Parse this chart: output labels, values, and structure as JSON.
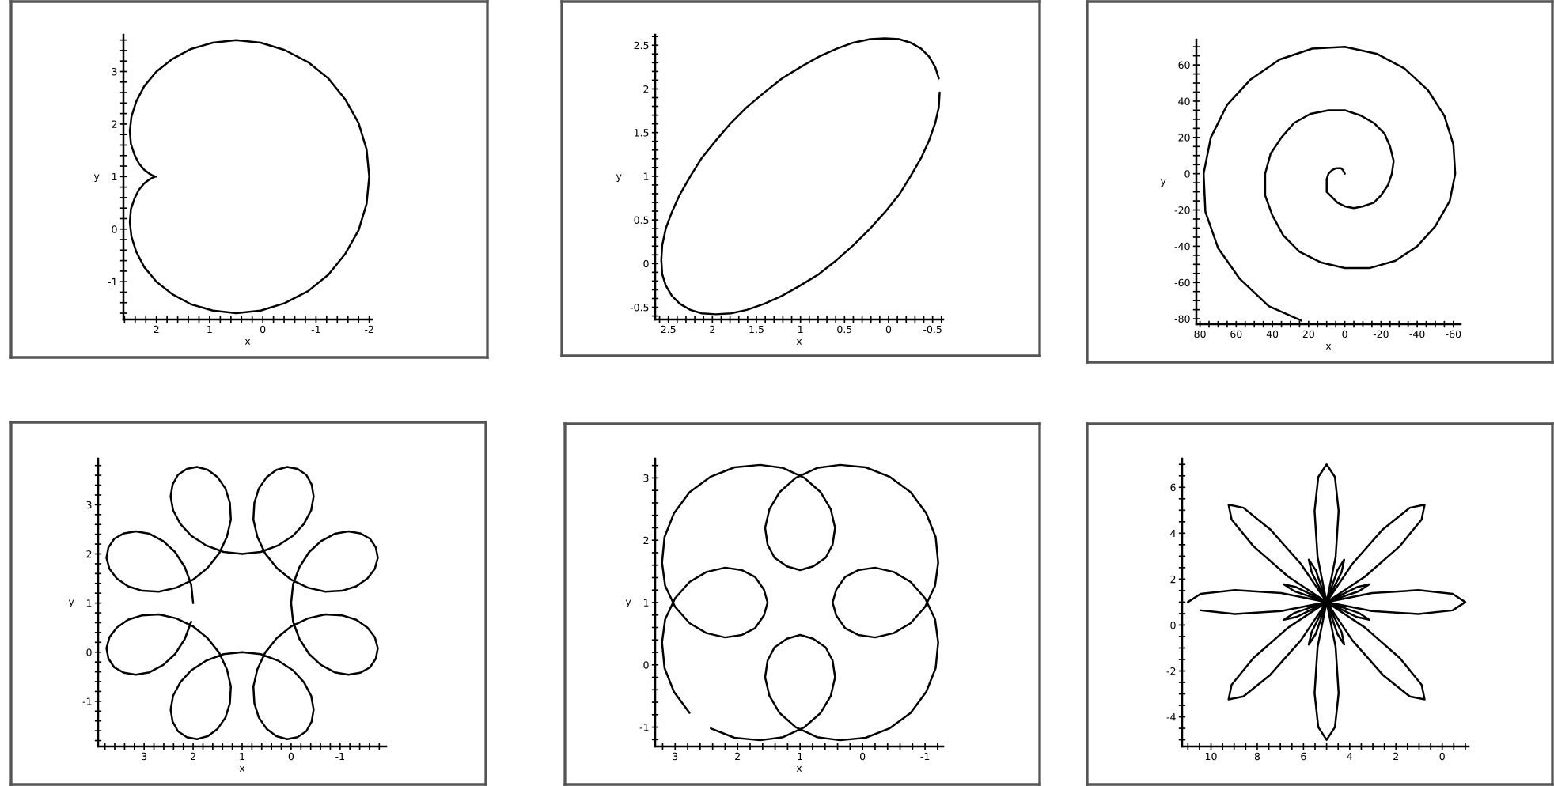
{
  "chart_data": [
    {
      "type": "line",
      "xlabel": "x",
      "ylabel": "y",
      "xlim": [
        2.62,
        -2.05
      ],
      "ylim": [
        -1.72,
        3.7
      ],
      "xticks": [
        {
          "value": 2.6,
          "label": null
        },
        {
          "value": 2.4,
          "label": null
        },
        {
          "value": 2.2,
          "label": null
        },
        2,
        {
          "value": 1.8,
          "label": null
        },
        {
          "value": 1.6,
          "label": null
        },
        {
          "value": 1.4,
          "label": null
        },
        {
          "value": 1.2,
          "label": null
        },
        1,
        {
          "value": 0.8,
          "label": null
        },
        {
          "value": 0.6,
          "label": null
        },
        {
          "value": 0.4,
          "label": null
        },
        {
          "value": 0.2,
          "label": null
        },
        0,
        {
          "value": -0.2,
          "label": null
        },
        {
          "value": -0.4,
          "label": null
        },
        {
          "value": -0.6,
          "label": null
        },
        {
          "value": -0.8,
          "label": null
        },
        -1,
        {
          "value": -1.2,
          "label": null
        },
        {
          "value": -1.4,
          "label": null
        },
        {
          "value": -1.6,
          "label": null
        },
        {
          "value": -1.8,
          "label": null
        },
        -2
      ],
      "yticks": [
        {
          "value": -1.6,
          "label": null
        },
        {
          "value": -1.4,
          "label": null
        },
        {
          "value": -1.2,
          "label": null
        },
        -1,
        {
          "value": -0.8,
          "label": null
        },
        {
          "value": -0.6,
          "label": null
        },
        {
          "value": -0.4,
          "label": null
        },
        {
          "value": -0.2,
          "label": null
        },
        0,
        {
          "value": 0.2,
          "label": null
        },
        {
          "value": 0.4,
          "label": null
        },
        {
          "value": 0.6,
          "label": null
        },
        {
          "value": 0.8,
          "label": null
        },
        1,
        {
          "value": 1.2,
          "label": null
        },
        {
          "value": 1.4,
          "label": null
        },
        {
          "value": 1.6,
          "label": null
        },
        {
          "value": 1.8,
          "label": null
        },
        2,
        {
          "value": 2.2,
          "label": null
        },
        {
          "value": 2.4,
          "label": null
        },
        {
          "value": 2.6,
          "label": null
        },
        {
          "value": 2.8,
          "label": null
        },
        3,
        {
          "value": 3.2,
          "label": null
        },
        {
          "value": 3.4,
          "label": null
        },
        {
          "value": 3.6,
          "label": null
        }
      ],
      "series": [
        {
          "color": "#000000",
          "x": [
            2,
            2.02,
            2.07,
            2.14,
            2.23,
            2.33,
            2.41,
            2.48,
            2.5,
            2.47,
            2.38,
            2.23,
            2,
            1.7,
            1.35,
            0.94,
            0.5,
            0.04,
            -0.41,
            -0.85,
            -1.23,
            -1.55,
            -1.8,
            -1.95,
            -2,
            -1.95,
            -1.8,
            -1.55,
            -1.23,
            -0.85,
            -0.41,
            0.04,
            0.5,
            0.94,
            1.35,
            1.7,
            2,
            2.23,
            2.38,
            2.47,
            2.5,
            2.48,
            2.41,
            2.33,
            2.23,
            2.14,
            2.07,
            2.02
          ],
          "values": [
            1,
            1,
            1.02,
            1.06,
            1.13,
            1.25,
            1.41,
            1.62,
            1.87,
            2.14,
            2.43,
            2.72,
            3,
            3.24,
            3.43,
            3.55,
            3.6,
            3.55,
            3.41,
            3.18,
            2.87,
            2.47,
            2.02,
            1.52,
            1,
            0.48,
            -0.02,
            -0.47,
            -0.87,
            -1.18,
            -1.41,
            -1.55,
            -1.6,
            -1.55,
            -1.43,
            -1.24,
            -1,
            -0.72,
            -0.43,
            -0.14,
            0.13,
            0.38,
            0.59,
            0.75,
            0.87,
            0.94,
            0.98,
            1
          ]
        }
      ]
    },
    {
      "type": "line",
      "xlabel": "x",
      "ylabel": "y",
      "xlim": [
        2.65,
        -0.62
      ],
      "ylim": [
        -0.64,
        2.62
      ],
      "xticks": [
        {
          "value": 2.6,
          "label": null
        },
        2.5,
        {
          "value": 2.4,
          "label": null
        },
        {
          "value": 2.3,
          "label": null
        },
        {
          "value": 2.2,
          "label": null
        },
        {
          "value": 2.1,
          "label": null
        },
        2,
        {
          "value": 1.9,
          "label": null
        },
        {
          "value": 1.8,
          "label": null
        },
        {
          "value": 1.7,
          "label": null
        },
        {
          "value": 1.6,
          "label": null
        },
        1.5,
        {
          "value": 1.4,
          "label": null
        },
        {
          "value": 1.3,
          "label": null
        },
        {
          "value": 1.2,
          "label": null
        },
        {
          "value": 1.1,
          "label": null
        },
        1,
        {
          "value": 0.9,
          "label": null
        },
        {
          "value": 0.8,
          "label": null
        },
        {
          "value": 0.7,
          "label": null
        },
        {
          "value": 0.6,
          "label": null
        },
        0.5,
        {
          "value": 0.4,
          "label": null
        },
        {
          "value": 0.3,
          "label": null
        },
        {
          "value": 0.2,
          "label": null
        },
        {
          "value": 0.1,
          "label": null
        },
        0,
        {
          "value": -0.1,
          "label": null
        },
        {
          "value": -0.2,
          "label": null
        },
        {
          "value": -0.3,
          "label": null
        },
        {
          "value": -0.4,
          "label": null
        },
        -0.5,
        {
          "value": -0.6,
          "label": null
        }
      ],
      "yticks": [
        {
          "value": -0.6,
          "label": null
        },
        -0.5,
        {
          "value": -0.4,
          "label": null
        },
        {
          "value": -0.3,
          "label": null
        },
        {
          "value": -0.2,
          "label": null
        },
        {
          "value": -0.1,
          "label": null
        },
        0,
        {
          "value": 0.1,
          "label": null
        },
        {
          "value": 0.2,
          "label": null
        },
        {
          "value": 0.3,
          "label": null
        },
        {
          "value": 0.4,
          "label": null
        },
        0.5,
        {
          "value": 0.6,
          "label": null
        },
        {
          "value": 0.7,
          "label": null
        },
        {
          "value": 0.8,
          "label": null
        },
        {
          "value": 0.9,
          "label": null
        },
        1,
        {
          "value": 1.1,
          "label": null
        },
        {
          "value": 1.2,
          "label": null
        },
        {
          "value": 1.3,
          "label": null
        },
        {
          "value": 1.4,
          "label": null
        },
        1.5,
        {
          "value": 1.6,
          "label": null
        },
        {
          "value": 1.7,
          "label": null
        },
        {
          "value": 1.8,
          "label": null
        },
        {
          "value": 1.9,
          "label": null
        },
        2,
        {
          "value": 2.1,
          "label": null
        },
        {
          "value": 2.2,
          "label": null
        },
        {
          "value": 2.3,
          "label": null
        },
        {
          "value": 2.4,
          "label": null
        },
        2.5,
        {
          "value": 2.6,
          "label": null
        }
      ],
      "series": [
        {
          "color": "#000000",
          "x": [
            -0.58,
            -0.57,
            -0.53,
            -0.46,
            -0.37,
            -0.25,
            -0.12,
            0.04,
            0.21,
            0.4,
            0.59,
            0.79,
            1,
            1.21,
            1.41,
            1.61,
            1.79,
            1.96,
            2.12,
            2.25,
            2.37,
            2.46,
            2.53,
            2.57,
            2.58,
            2.57,
            2.53,
            2.46,
            2.37,
            2.25,
            2.12,
            1.96,
            1.79,
            1.61,
            1.41,
            1.21,
            1,
            0.79,
            0.59,
            0.4,
            0.21,
            0.04,
            -0.12,
            -0.25,
            -0.37,
            -0.46,
            -0.53,
            -0.57
          ],
          "values": [
            1.96,
            1.79,
            1.61,
            1.41,
            1.21,
            1,
            0.79,
            0.59,
            0.4,
            0.21,
            0.04,
            -0.12,
            -0.25,
            -0.37,
            -0.46,
            -0.53,
            -0.57,
            -0.58,
            -0.57,
            -0.53,
            -0.46,
            -0.37,
            -0.25,
            -0.12,
            0.04,
            0.21,
            0.4,
            0.59,
            0.79,
            1,
            1.21,
            1.41,
            1.61,
            1.79,
            1.96,
            2.12,
            2.25,
            2.37,
            2.46,
            2.53,
            2.57,
            2.58,
            2.57,
            2.53,
            2.46,
            2.37,
            2.25,
            2.12
          ]
        }
      ]
    },
    {
      "type": "line",
      "xlabel": "x",
      "ylabel": "y",
      "xlim": [
        82,
        -64
      ],
      "ylim": [
        -83,
        74
      ],
      "xticks": [
        80,
        {
          "value": 75,
          "label": null
        },
        {
          "value": 70,
          "label": null
        },
        {
          "value": 65,
          "label": null
        },
        60,
        {
          "value": 55,
          "label": null
        },
        {
          "value": 50,
          "label": null
        },
        {
          "value": 45,
          "label": null
        },
        40,
        {
          "value": 35,
          "label": null
        },
        {
          "value": 30,
          "label": null
        },
        {
          "value": 25,
          "label": null
        },
        20,
        {
          "value": 15,
          "label": null
        },
        {
          "value": 10,
          "label": null
        },
        {
          "value": 5,
          "label": null
        },
        0,
        {
          "value": -5,
          "label": null
        },
        {
          "value": -10,
          "label": null
        },
        {
          "value": -15,
          "label": null
        },
        -20,
        {
          "value": -25,
          "label": null
        },
        {
          "value": -30,
          "label": null
        },
        {
          "value": -35,
          "label": null
        },
        -40,
        {
          "value": -45,
          "label": null
        },
        {
          "value": -50,
          "label": null
        },
        {
          "value": -55,
          "label": null
        },
        -60
      ],
      "yticks": [
        -80,
        {
          "value": -75,
          "label": null
        },
        {
          "value": -70,
          "label": null
        },
        {
          "value": -65,
          "label": null
        },
        -60,
        {
          "value": -55,
          "label": null
        },
        {
          "value": -50,
          "label": null
        },
        {
          "value": -45,
          "label": null
        },
        -40,
        {
          "value": -35,
          "label": null
        },
        {
          "value": -30,
          "label": null
        },
        {
          "value": -25,
          "label": null
        },
        -20,
        {
          "value": -15,
          "label": null
        },
        {
          "value": -10,
          "label": null
        },
        {
          "value": -5,
          "label": null
        },
        0,
        {
          "value": 5,
          "label": null
        },
        {
          "value": 10,
          "label": null
        },
        {
          "value": 15,
          "label": null
        },
        20,
        {
          "value": 25,
          "label": null
        },
        {
          "value": 30,
          "label": null
        },
        {
          "value": 35,
          "label": null
        },
        40,
        {
          "value": 45,
          "label": null
        },
        {
          "value": 50,
          "label": null
        },
        {
          "value": 55,
          "label": null
        },
        60,
        {
          "value": 65,
          "label": null
        },
        {
          "value": 70,
          "label": null
        }
      ],
      "series": [
        {
          "color": "#000000",
          "x": [
            0,
            1,
            2,
            3,
            5,
            7,
            9,
            10,
            10,
            10,
            7,
            4,
            0,
            -5,
            -10,
            -16,
            -20,
            -24,
            -26,
            -27,
            -25,
            -22,
            -16,
            -9,
            0,
            9,
            19,
            28,
            35,
            41,
            44,
            44,
            40,
            34,
            25,
            13,
            0,
            -14,
            -28,
            -40,
            -50,
            -58,
            -61,
            -60,
            -55,
            -46,
            -33,
            -18,
            0,
            18,
            36,
            52,
            65,
            74,
            78,
            77,
            70,
            58,
            42,
            24
          ],
          "values": [
            0,
            2,
            3,
            3,
            3,
            2,
            0,
            -3,
            -6,
            -10,
            -13,
            -16,
            -18,
            -19,
            -18,
            -16,
            -12,
            -6,
            0,
            7,
            15,
            22,
            28,
            32,
            35,
            35,
            33,
            28,
            20,
            11,
            0,
            -12,
            -23,
            -34,
            -43,
            -49,
            -52,
            -52,
            -48,
            -40,
            -29,
            -15,
            0,
            16,
            32,
            46,
            58,
            66,
            70,
            69,
            63,
            52,
            38,
            20,
            0,
            -21,
            -41,
            -58,
            -73,
            -81
          ]
        }
      ]
    },
    {
      "type": "line",
      "xlabel": "x",
      "ylabel": "y",
      "xlim": [
        3.94,
        -1.94
      ],
      "ylim": [
        -1.92,
        3.94
      ],
      "xticks": [
        {
          "value": 3.8,
          "label": null
        },
        {
          "value": 3.6,
          "label": null
        },
        {
          "value": 3.4,
          "label": null
        },
        {
          "value": 3.2,
          "label": null
        },
        3,
        {
          "value": 2.8,
          "label": null
        },
        {
          "value": 2.6,
          "label": null
        },
        {
          "value": 2.4,
          "label": null
        },
        {
          "value": 2.2,
          "label": null
        },
        2,
        {
          "value": 1.8,
          "label": null
        },
        {
          "value": 1.6,
          "label": null
        },
        {
          "value": 1.4,
          "label": null
        },
        {
          "value": 1.2,
          "label": null
        },
        1,
        {
          "value": 0.8,
          "label": null
        },
        {
          "value": 0.6,
          "label": null
        },
        {
          "value": 0.4,
          "label": null
        },
        {
          "value": 0.2,
          "label": null
        },
        0,
        {
          "value": -0.2,
          "label": null
        },
        {
          "value": -0.4,
          "label": null
        },
        {
          "value": -0.6,
          "label": null
        },
        {
          "value": -0.8,
          "label": null
        },
        -1,
        {
          "value": -1.2,
          "label": null
        },
        {
          "value": -1.4,
          "label": null
        },
        {
          "value": -1.6,
          "label": null
        },
        {
          "value": -1.8,
          "label": null
        }
      ],
      "yticks": [
        {
          "value": -1.8,
          "label": null
        },
        {
          "value": -1.6,
          "label": null
        },
        {
          "value": -1.4,
          "label": null
        },
        {
          "value": -1.2,
          "label": null
        },
        -1,
        {
          "value": -0.8,
          "label": null
        },
        {
          "value": -0.6,
          "label": null
        },
        {
          "value": -0.4,
          "label": null
        },
        {
          "value": -0.2,
          "label": null
        },
        0,
        {
          "value": 0.2,
          "label": null
        },
        {
          "value": 0.4,
          "label": null
        },
        {
          "value": 0.6,
          "label": null
        },
        {
          "value": 0.8,
          "label": null
        },
        1,
        {
          "value": 1.2,
          "label": null
        },
        {
          "value": 1.4,
          "label": null
        },
        {
          "value": 1.6,
          "label": null
        },
        {
          "value": 1.8,
          "label": null
        },
        2,
        {
          "value": 2.2,
          "label": null
        },
        {
          "value": 2.4,
          "label": null
        },
        {
          "value": 2.6,
          "label": null
        },
        {
          "value": 2.8,
          "label": null
        },
        3,
        {
          "value": 3.2,
          "label": null
        },
        {
          "value": 3.4,
          "label": null
        },
        {
          "value": 3.6,
          "label": null
        },
        {
          "value": 3.8,
          "label": null
        }
      ],
      "series": [
        {
          "color": "#000000",
          "x": [
            2.0,
            2.04,
            2.17,
            2.37,
            2.61,
            2.89,
            3.17,
            3.41,
            3.61,
            3.73,
            3.77,
            3.71,
            3.56,
            3.33,
            3.04,
            2.7,
            2.35,
            2.01,
            1.71,
            1.47,
            1.31,
            1.23,
            1.25,
            1.34,
            1.5,
            1.7,
            1.92,
            2.13,
            2.31,
            2.42,
            2.46,
            2.41,
            2.26,
            2.04,
            1.73,
            1.38,
            1.0,
            0.62,
            0.27,
            -0.04,
            -0.26,
            -0.41,
            -0.46,
            -0.42,
            -0.31,
            -0.13,
            0.08,
            0.3,
            0.5,
            0.66,
            0.75,
            0.77,
            0.69,
            0.53,
            0.29,
            -0.01,
            -0.35,
            -0.7,
            -1.04,
            -1.33,
            -1.56,
            -1.71,
            -1.77,
            -1.73,
            -1.61,
            -1.41,
            -1.17,
            -0.89,
            -0.61,
            -0.37,
            -0.17,
            -0.04,
            0.0,
            -0.04,
            -0.17,
            -0.37,
            -0.61,
            -0.89,
            -1.17,
            -1.41,
            -1.61,
            -1.73,
            -1.77,
            -1.71,
            -1.56,
            -1.33,
            -1.04,
            -0.7,
            -0.35,
            -0.01,
            0.29,
            0.53,
            0.69,
            0.77,
            0.75,
            0.66,
            0.5,
            0.3,
            0.08,
            -0.13,
            -0.31,
            -0.42,
            -0.46,
            -0.41,
            -0.26,
            -0.04,
            0.27,
            0.62,
            1.0,
            1.38,
            1.73,
            2.04,
            2.26,
            2.41,
            2.46,
            2.42,
            2.31,
            2.13,
            1.92,
            1.7,
            1.5,
            1.34,
            1.25,
            1.23,
            1.31,
            1.47,
            1.71,
            2.01,
            2.35,
            2.7,
            3.04,
            3.33,
            3.56,
            3.71,
            3.77,
            3.73,
            3.61,
            3.41,
            3.17,
            2.89,
            2.61,
            2.37,
            2.17,
            2.04
          ],
          "values": [
            1.0,
            1.38,
            1.73,
            2.04,
            2.26,
            2.41,
            2.46,
            2.42,
            2.31,
            2.13,
            1.92,
            1.7,
            1.5,
            1.34,
            1.25,
            1.23,
            1.31,
            1.47,
            1.71,
            2.01,
            2.35,
            2.7,
            3.04,
            3.33,
            3.56,
            3.71,
            3.77,
            3.73,
            3.61,
            3.41,
            3.17,
            2.89,
            2.61,
            2.37,
            2.17,
            2.04,
            2.0,
            2.04,
            2.17,
            2.37,
            2.61,
            2.89,
            3.17,
            3.41,
            3.61,
            3.73,
            3.77,
            3.71,
            3.56,
            3.33,
            3.04,
            2.7,
            2.35,
            2.01,
            1.71,
            1.47,
            1.31,
            1.23,
            1.25,
            1.34,
            1.5,
            1.7,
            1.92,
            2.13,
            2.31,
            2.42,
            2.46,
            2.41,
            2.26,
            2.04,
            1.73,
            1.38,
            1.0,
            0.62,
            0.27,
            -0.04,
            -0.26,
            -0.41,
            -0.46,
            -0.42,
            -0.31,
            -0.13,
            0.08,
            0.3,
            0.5,
            0.66,
            0.75,
            0.77,
            0.69,
            0.53,
            0.29,
            -0.01,
            -0.35,
            -0.7,
            -1.04,
            -1.33,
            -1.56,
            -1.71,
            -1.77,
            -1.73,
            -1.61,
            -1.41,
            -1.17,
            -0.89,
            -0.61,
            -0.37,
            -0.17,
            -0.04,
            0.0,
            -0.04,
            -0.17,
            -0.37,
            -0.61,
            -0.89,
            -1.17,
            -1.41,
            -1.61,
            -1.73,
            -1.77,
            -1.71,
            -1.56,
            -1.33,
            -1.04,
            -0.7,
            -0.35,
            -0.01,
            0.29,
            0.53,
            0.69,
            0.77,
            0.75,
            0.66,
            0.5,
            0.3,
            0.08,
            -0.13,
            -0.31,
            -0.42,
            -0.46,
            -0.41,
            -0.26,
            -0.04,
            0.27,
            0.62
          ]
        }
      ]
    },
    {
      "type": "line",
      "xlabel": "x",
      "ylabel": "y",
      "xlim": [
        3.32,
        -1.29
      ],
      "ylim": [
        -1.31,
        3.31
      ],
      "xticks": [
        {
          "value": 3.2,
          "label": null
        },
        3,
        {
          "value": 2.8,
          "label": null
        },
        {
          "value": 2.6,
          "label": null
        },
        {
          "value": 2.4,
          "label": null
        },
        {
          "value": 2.2,
          "label": null
        },
        2,
        {
          "value": 1.8,
          "label": null
        },
        {
          "value": 1.6,
          "label": null
        },
        {
          "value": 1.4,
          "label": null
        },
        {
          "value": 1.2,
          "label": null
        },
        1,
        {
          "value": 0.8,
          "label": null
        },
        {
          "value": 0.6,
          "label": null
        },
        {
          "value": 0.4,
          "label": null
        },
        {
          "value": 0.2,
          "label": null
        },
        0,
        {
          "value": -0.2,
          "label": null
        },
        {
          "value": -0.4,
          "label": null
        },
        {
          "value": -0.6,
          "label": null
        },
        {
          "value": -0.8,
          "label": null
        },
        -1,
        {
          "value": -1.2,
          "label": null
        }
      ],
      "yticks": [
        {
          "value": -1.2,
          "label": null
        },
        -1,
        {
          "value": -0.8,
          "label": null
        },
        {
          "value": -0.6,
          "label": null
        },
        {
          "value": -0.4,
          "label": null
        },
        {
          "value": -0.2,
          "label": null
        },
        0,
        {
          "value": 0.2,
          "label": null
        },
        {
          "value": 0.4,
          "label": null
        },
        {
          "value": 0.6,
          "label": null
        },
        {
          "value": 0.8,
          "label": null
        },
        1,
        {
          "value": 1.2,
          "label": null
        },
        {
          "value": 1.4,
          "label": null
        },
        {
          "value": 1.6,
          "label": null
        },
        {
          "value": 1.8,
          "label": null
        },
        2,
        {
          "value": 2.2,
          "label": null
        },
        {
          "value": 2.4,
          "label": null
        },
        {
          "value": 2.6,
          "label": null
        },
        {
          "value": 2.8,
          "label": null
        },
        3,
        {
          "value": 3.2,
          "label": null
        }
      ],
      "series": [
        {
          "color": "#000000",
          "x": [
            2.77,
            3.02,
            3.17,
            3.21,
            3.16,
            3.0,
            2.77,
            2.5,
            2.2,
            1.93,
            1.72,
            1.58,
            1.52,
            1.58,
            1.72,
            1.93,
            2.2,
            2.5,
            2.77,
            3.0,
            3.16,
            3.21,
            3.17,
            3.02,
            2.77,
            2.43,
            2.05,
            1.64,
            1.27,
            0.93,
            0.67,
            0.51,
            0.44,
            0.48,
            0.59,
            0.79,
            1.0,
            1.21,
            1.41,
            1.52,
            1.56,
            1.49,
            1.33,
            1.07,
            0.73,
            0.36,
            -0.05,
            -0.43,
            -0.77,
            -1.02,
            -1.17,
            -1.21,
            -1.16,
            -1.0,
            -0.77,
            -0.5,
            -0.2,
            0.07,
            0.28,
            0.42,
            0.48,
            0.42,
            0.28,
            0.07,
            -0.2,
            -0.5,
            -0.77,
            -1.0,
            -1.16,
            -1.21,
            -1.17,
            -1.02,
            -0.77,
            -0.43,
            -0.05,
            0.36,
            0.73,
            1.07,
            1.33,
            1.49,
            1.56,
            1.52,
            1.41,
            1.21,
            1.0,
            0.79,
            0.59,
            0.48,
            0.44,
            0.51,
            0.67,
            0.93,
            1.27,
            1.64,
            2.05,
            2.43
          ],
          "values": [
            -0.77,
            -0.43,
            -0.05,
            0.36,
            0.73,
            1.07,
            1.33,
            1.49,
            1.56,
            1.52,
            1.41,
            1.21,
            1.0,
            0.79,
            0.59,
            0.48,
            0.44,
            0.51,
            0.67,
            0.93,
            1.27,
            1.64,
            2.05,
            2.43,
            2.77,
            3.02,
            3.17,
            3.21,
            3.16,
            3.0,
            2.77,
            2.5,
            2.2,
            1.93,
            1.72,
            1.58,
            1.52,
            1.58,
            1.72,
            1.93,
            2.2,
            2.5,
            2.77,
            3.0,
            3.16,
            3.21,
            3.17,
            3.02,
            2.77,
            2.43,
            2.05,
            1.64,
            1.27,
            0.93,
            0.67,
            0.51,
            0.44,
            0.48,
            0.59,
            0.79,
            1.0,
            1.21,
            1.41,
            1.52,
            1.56,
            1.49,
            1.33,
            1.07,
            0.73,
            0.36,
            -0.05,
            -0.43,
            -0.77,
            -1.02,
            -1.17,
            -1.21,
            -1.16,
            -1.0,
            -0.77,
            -0.5,
            -0.2,
            0.07,
            0.28,
            0.42,
            0.48,
            0.42,
            0.28,
            0.07,
            -0.2,
            -0.5,
            -0.77,
            -1.0,
            -1.16,
            -1.21,
            -1.17,
            -1.02
          ]
        }
      ]
    },
    {
      "type": "line",
      "xlim": [
        11.25,
        -1.14
      ],
      "ylim": [
        -5.29,
        7.25
      ],
      "xticks": [
        {
          "value": 11,
          "label": null
        },
        {
          "value": 10.5,
          "label": null
        },
        10,
        {
          "value": 9.5,
          "label": null
        },
        {
          "value": 9,
          "label": null
        },
        {
          "value": 8.5,
          "label": null
        },
        8,
        {
          "value": 7.5,
          "label": null
        },
        {
          "value": 7,
          "label": null
        },
        {
          "value": 6.5,
          "label": null
        },
        6,
        {
          "value": 5.5,
          "label": null
        },
        {
          "value": 5,
          "label": null
        },
        {
          "value": 4.5,
          "label": null
        },
        4,
        {
          "value": 3.5,
          "label": null
        },
        {
          "value": 3,
          "label": null
        },
        {
          "value": 2.5,
          "label": null
        },
        2,
        {
          "value": 1.5,
          "label": null
        },
        {
          "value": 1,
          "label": null
        },
        {
          "value": 0.5,
          "label": null
        },
        0,
        {
          "value": -0.5,
          "label": null
        },
        {
          "value": -1,
          "label": null
        }
      ],
      "yticks": [
        {
          "value": -5,
          "label": null
        },
        {
          "value": -4.5,
          "label": null
        },
        -4,
        {
          "value": -3.5,
          "label": null
        },
        {
          "value": -3,
          "label": null
        },
        {
          "value": -2.5,
          "label": null
        },
        -2,
        {
          "value": -1.5,
          "label": null
        },
        {
          "value": -1,
          "label": null
        },
        {
          "value": -0.5,
          "label": null
        },
        0,
        {
          "value": 0.5,
          "label": null
        },
        {
          "value": 1,
          "label": null
        },
        {
          "value": 1.5,
          "label": null
        },
        2,
        {
          "value": 2.5,
          "label": null
        },
        {
          "value": 3,
          "label": null
        },
        {
          "value": 3.5,
          "label": null
        },
        4,
        {
          "value": 4.5,
          "label": null
        },
        {
          "value": 5,
          "label": null
        },
        {
          "value": 5.5,
          "label": null
        },
        6,
        {
          "value": 6.5,
          "label": null
        },
        {
          "value": 7,
          "label": null
        }
      ],
      "series": [
        {
          "color": "#000000",
          "x": [
            11.0,
            10.45,
            8.97,
            6.96,
            5.0,
            3.61,
            3.15,
            3.69,
            5.0,
            6.66,
            8.17,
            9.11,
            9.24,
            8.6,
            7.44,
            6.11,
            5.0,
            4.35,
            4.24,
            4.53,
            5.0,
            5.39,
            5.52,
            5.36,
            5.0,
            4.64,
            4.48,
            4.61,
            5.0,
            5.47,
            5.77,
            5.65,
            5.0,
            3.89,
            2.57,
            1.4,
            0.76,
            0.89,
            1.83,
            3.34,
            5.0,
            6.31,
            6.85,
            6.39,
            5.0,
            3.04,
            1.03,
            -0.45,
            -1.0,
            -0.45,
            1.03,
            3.04,
            5.0,
            6.39,
            6.85,
            6.31,
            5.0,
            3.34,
            1.83,
            0.89,
            0.76,
            1.4,
            2.57,
            3.89,
            5.0,
            5.65,
            5.77,
            5.47,
            5.0,
            4.61,
            4.48,
            4.64,
            5.0,
            5.36,
            5.52,
            5.39,
            5.0,
            4.53,
            4.24,
            4.35,
            5.0,
            6.11,
            7.44,
            8.6,
            9.24,
            9.11,
            8.17,
            6.66,
            5.0,
            3.69,
            3.15,
            3.61,
            5.0,
            6.96,
            8.97,
            10.45
          ],
          "values": [
            1.0,
            1.36,
            1.52,
            1.39,
            1.0,
            0.53,
            0.23,
            0.35,
            1.0,
            2.11,
            3.44,
            4.6,
            5.24,
            5.11,
            4.17,
            2.66,
            1.0,
            -0.31,
            -0.85,
            -0.39,
            1.0,
            2.96,
            4.97,
            6.45,
            7.0,
            6.45,
            4.97,
            2.96,
            1.0,
            -0.39,
            -0.85,
            -0.31,
            1.0,
            2.66,
            4.17,
            5.11,
            5.24,
            4.6,
            3.44,
            2.11,
            1.0,
            0.35,
            0.23,
            0.53,
            1.0,
            1.39,
            1.52,
            1.36,
            1.0,
            0.64,
            0.48,
            0.61,
            1.0,
            1.47,
            1.77,
            1.65,
            1.0,
            -0.11,
            -1.44,
            -2.6,
            -3.24,
            -3.11,
            -2.17,
            -0.66,
            1.0,
            2.31,
            2.85,
            2.39,
            1.0,
            -0.96,
            -2.97,
            -4.45,
            -5.0,
            -4.45,
            -2.97,
            -0.96,
            1.0,
            2.39,
            2.85,
            2.31,
            1.0,
            -0.66,
            -2.17,
            -3.11,
            -3.24,
            -2.6,
            -1.44,
            -0.11,
            1.0,
            1.65,
            1.77,
            1.47,
            1.0,
            0.61,
            0.48,
            0.64
          ]
        }
      ]
    }
  ]
}
